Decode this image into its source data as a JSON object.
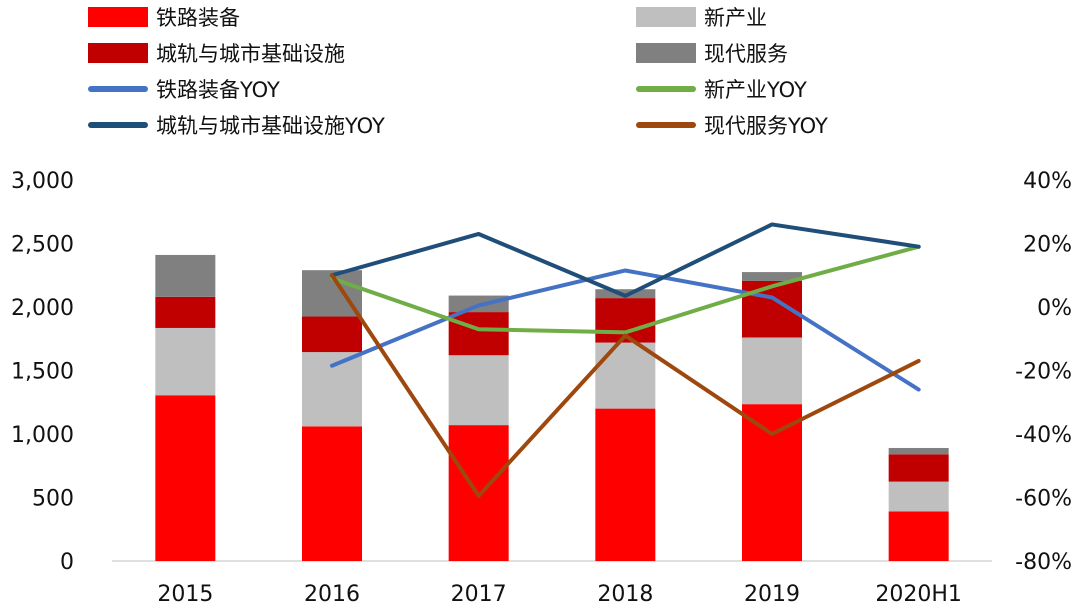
{
  "chart_data": {
    "type": "bar",
    "categories": [
      "2015",
      "2016",
      "2017",
      "2018",
      "2019",
      "2020H1"
    ],
    "stacked_series": [
      {
        "name": "铁路装备",
        "color": "#ff0000",
        "values": [
          1305,
          1060,
          1070,
          1200,
          1235,
          390
        ]
      },
      {
        "name": "新产业",
        "color": "#bfbfbf",
        "values": [
          530,
          585,
          550,
          520,
          525,
          235
        ]
      },
      {
        "name": "城轨与城市基础设施",
        "color": "#c00000",
        "values": [
          245,
          280,
          340,
          350,
          445,
          215
        ]
      },
      {
        "name": "现代服务",
        "color": "#808080",
        "values": [
          330,
          365,
          130,
          70,
          70,
          50
        ]
      }
    ],
    "line_series": [
      {
        "name": "铁路装备YOY",
        "color": "#4472c4",
        "values": [
          null,
          -18.5,
          0.5,
          11.5,
          3,
          -26
        ]
      },
      {
        "name": "新产业YOY",
        "color": "#70ad47",
        "values": [
          null,
          9,
          -7,
          -8,
          6.5,
          19
        ]
      },
      {
        "name": "城轨与城市基础设施YOY",
        "color": "#1f4e79",
        "values": [
          null,
          10,
          23,
          3.5,
          26,
          19
        ]
      },
      {
        "name": "现代服务YOY",
        "color": "#9e480e",
        "values": [
          null,
          10,
          -59.5,
          -9,
          -40,
          -17
        ]
      }
    ],
    "y_left": {
      "min": 0,
      "max": 3000,
      "ticks": [
        "0",
        "500",
        "1,000",
        "1,500",
        "2,000",
        "2,500",
        "3,000"
      ]
    },
    "y_right": {
      "min": -80,
      "max": 40,
      "ticks": [
        "-80%",
        "-60%",
        "-40%",
        "-20%",
        "0%",
        "20%",
        "40%"
      ]
    },
    "grid": false,
    "legend_position": "top"
  }
}
